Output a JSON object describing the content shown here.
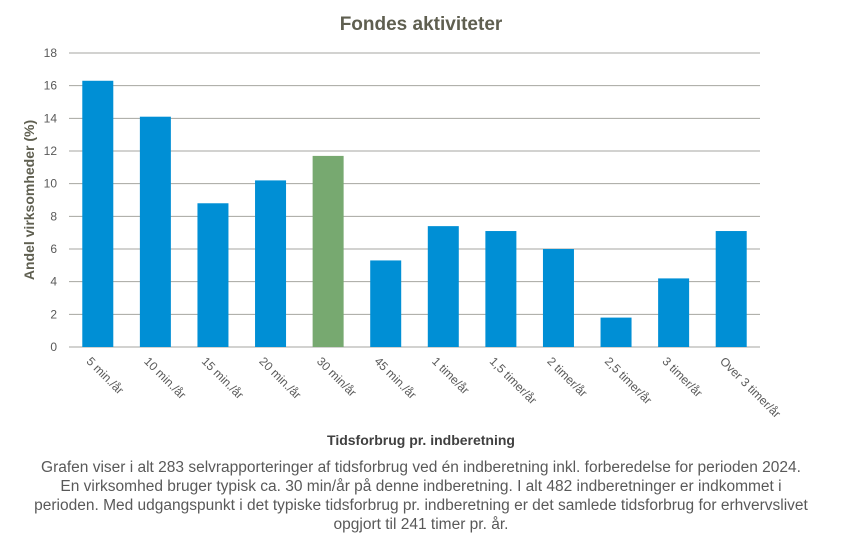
{
  "chart_data": {
    "type": "bar",
    "title": "Fondes aktiviteter",
    "xlabel": "Tidsforbrug pr. indberetning",
    "ylabel": "Andel virksomheder  (%)",
    "ylim": [
      0,
      18
    ],
    "yticks": [
      0,
      2,
      4,
      6,
      8,
      10,
      12,
      14,
      16,
      18
    ],
    "grid": true,
    "categories": [
      "5 min./år",
      "10 min./år",
      "15 min./år",
      "20 min./år",
      "30 min/år",
      "45 min./år",
      "1 time/år",
      "1,5 timer/år",
      "2 timer/år",
      "2,5 timer/år",
      "3 timer/år",
      "Over 3 timer/år"
    ],
    "values": [
      16.3,
      14.1,
      8.8,
      10.2,
      11.7,
      5.3,
      7.4,
      7.1,
      6.0,
      1.8,
      4.2,
      7.1
    ],
    "highlight_category": "30 min/år",
    "colors": {
      "bar": "#008fd5",
      "highlight": "#77a970",
      "grid": "#a6a6a0"
    }
  },
  "caption": "Grafen viser i alt 283 selvrapporteringer af tidsforbrug ved én indberetning inkl. forberedelse for perioden 2024. En virksomhed bruger typisk ca. 30 min/år på denne indberetning. I alt 482 indberetninger er indkommet i perioden. Med udgangspunkt i det typiske tidsforbrug pr. indberetning er det samlede tidsforbrug for erhvervslivet opgjort til 241 timer pr. år."
}
